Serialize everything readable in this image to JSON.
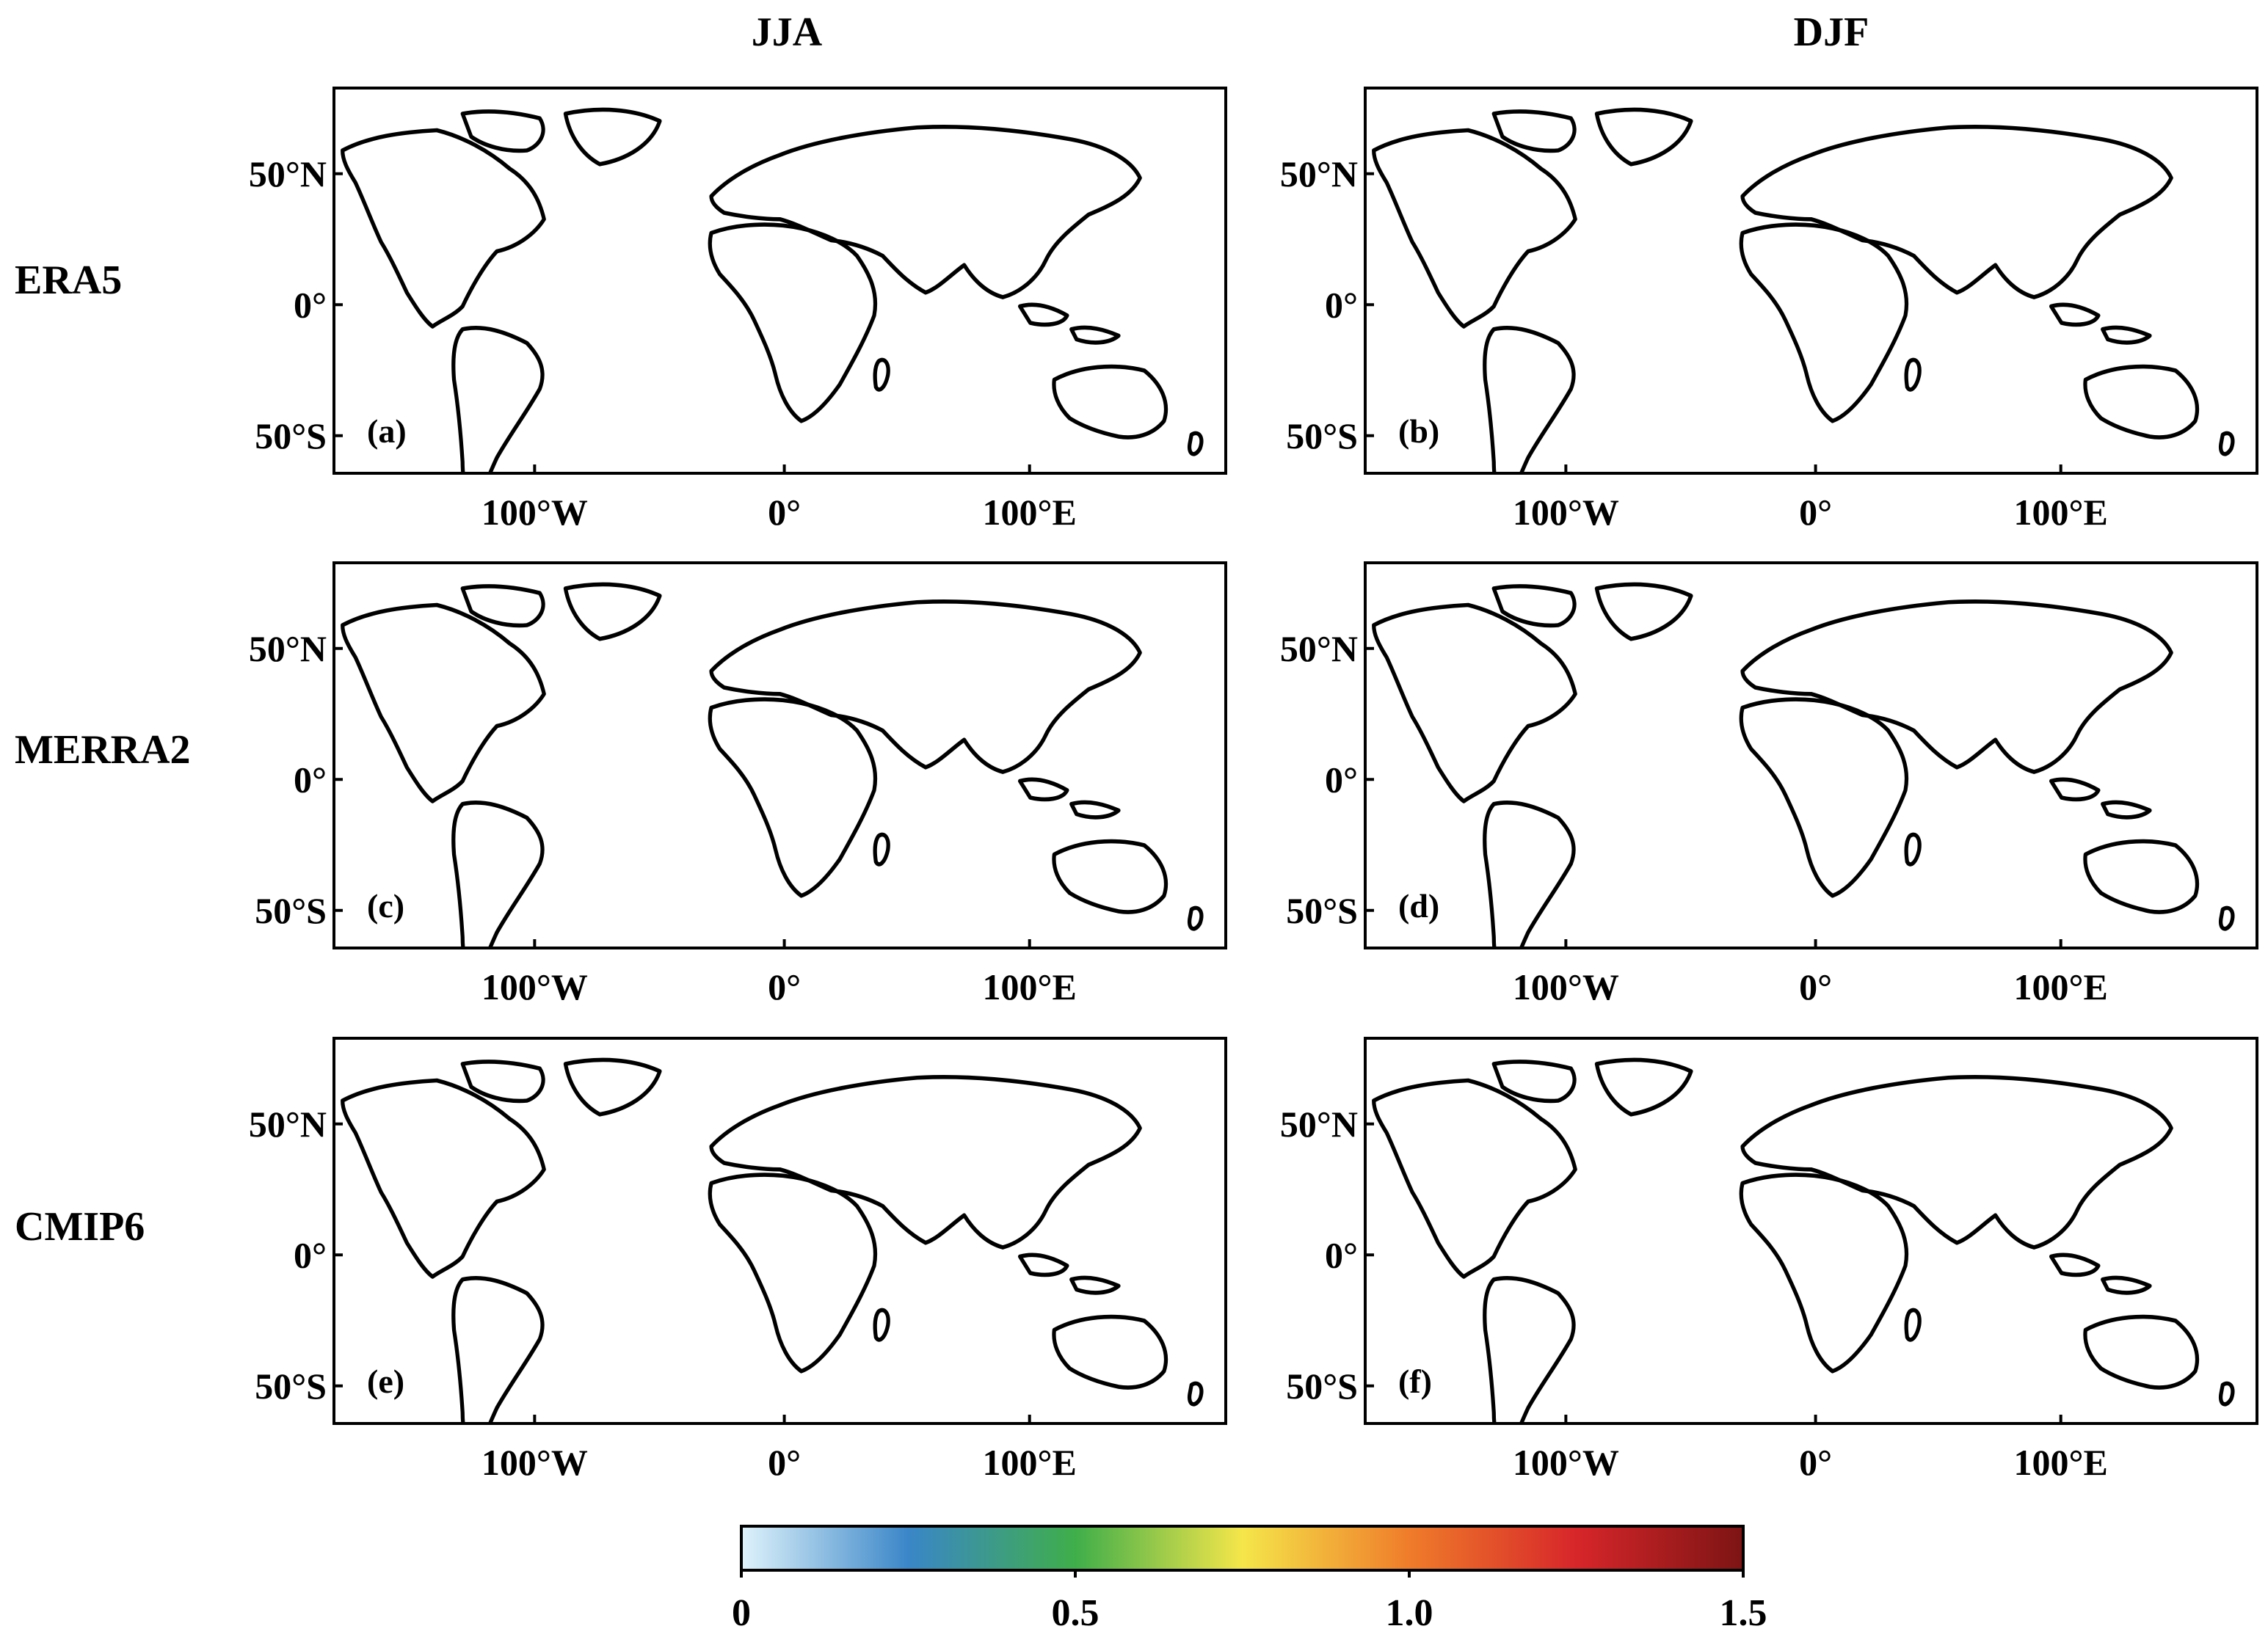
{
  "figure": {
    "column_titles": [
      "JJA",
      "DJF"
    ],
    "row_labels": [
      "ERA5",
      "MERRA2",
      "CMIP6"
    ],
    "lat_ticks": [
      "50°N",
      "0°",
      "50°S"
    ],
    "lon_ticks": [
      "100°W",
      "0°",
      "100°E"
    ],
    "panels": [
      {
        "id": "a",
        "tag": "(a)",
        "dataset": "ERA5",
        "season": "JJA"
      },
      {
        "id": "b",
        "tag": "(b)",
        "dataset": "ERA5",
        "season": "DJF"
      },
      {
        "id": "c",
        "tag": "(c)",
        "dataset": "MERRA2",
        "season": "JJA"
      },
      {
        "id": "d",
        "tag": "(d)",
        "dataset": "MERRA2",
        "season": "DJF"
      },
      {
        "id": "e",
        "tag": "(e)",
        "dataset": "CMIP6",
        "season": "JJA"
      },
      {
        "id": "f",
        "tag": "(f)",
        "dataset": "CMIP6",
        "season": "DJF"
      }
    ]
  },
  "colorbar": {
    "range": [
      0,
      1.5
    ],
    "tick_labels": [
      "0",
      "0.5",
      "1.0",
      "1.5"
    ],
    "tick_values": [
      0,
      0.5,
      1.0,
      1.5
    ],
    "colors": [
      "#dff3fb",
      "#3a86c8",
      "#3fae4a",
      "#f5e64a",
      "#ef7c2a",
      "#d7262a",
      "#7d1414"
    ]
  }
}
